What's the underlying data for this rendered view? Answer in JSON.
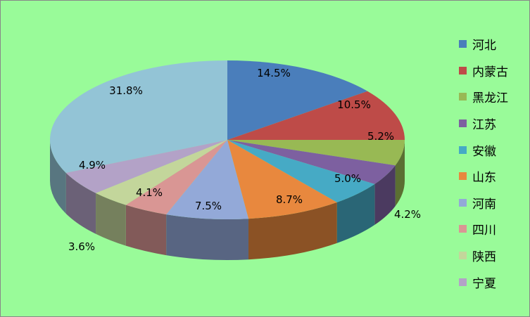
{
  "chart_data": {
    "type": "pie",
    "style": "3d",
    "start": "top, clockwise",
    "legend_position": "right",
    "slices": [
      {
        "name": "河北",
        "value": 14.5,
        "label": "14.5%",
        "color": "#4a7ebb"
      },
      {
        "name": "内蒙古",
        "value": 10.5,
        "label": "10.5%",
        "color": "#be4b48"
      },
      {
        "name": "黑龙江",
        "value": 5.2,
        "label": "5.2%",
        "color": "#98b954"
      },
      {
        "name": "江苏",
        "value": 4.2,
        "label": "4.2%",
        "color": "#7d60a0"
      },
      {
        "name": "安徽",
        "value": 5.0,
        "label": "5.0%",
        "color": "#46aac5"
      },
      {
        "name": "山东",
        "value": 8.7,
        "label": "8.7%",
        "color": "#e8883e"
      },
      {
        "name": "河南",
        "value": 7.5,
        "label": "7.5%",
        "color": "#93a9d8"
      },
      {
        "name": "四川",
        "value": 4.1,
        "label": "4.1%",
        "color": "#d99694"
      },
      {
        "name": "陕西",
        "value": 3.6,
        "label": "3.6%",
        "color": "#c3d69b"
      },
      {
        "name": "宁夏",
        "value": 4.9,
        "label": "4.9%",
        "color": "#b3a2c7"
      },
      {
        "name": "",
        "value": 31.8,
        "label": "31.8%",
        "color": "#93c4d6"
      }
    ]
  },
  "background_color": "#99fb99"
}
